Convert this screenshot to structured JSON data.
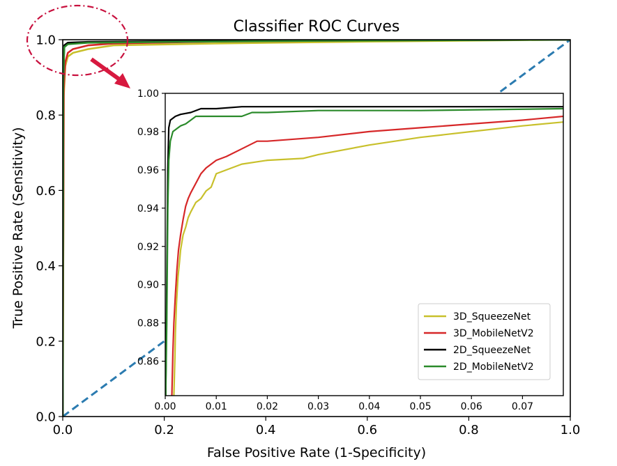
{
  "chart_data": [
    {
      "id": "main",
      "type": "line",
      "title": "Classifier ROC Curves",
      "xlabel": "False Positive Rate (1-Specificity)",
      "ylabel": "True Positive Rate (Sensitivity)",
      "xlim": [
        0,
        1
      ],
      "ylim": [
        0,
        1
      ],
      "xticks": [
        "0.0",
        "0.2",
        "0.4",
        "0.6",
        "0.8",
        "1.0"
      ],
      "yticks": [
        "0.0",
        "0.2",
        "0.4",
        "0.6",
        "0.8",
        "1.0"
      ],
      "grid": false,
      "reference_line": {
        "x": [
          0,
          1
        ],
        "y": [
          0,
          1
        ],
        "color": "#2b7bb0",
        "style": "dashed"
      },
      "series": [
        {
          "name": "3D_SqueezeNet",
          "color": "#c8c02b",
          "x": [
            0,
            0.002,
            0.005,
            0.01,
            0.02,
            0.05,
            0.1,
            0.3,
            0.6,
            1.0
          ],
          "y": [
            0,
            0.85,
            0.93,
            0.955,
            0.965,
            0.975,
            0.985,
            0.99,
            0.995,
            1.0
          ]
        },
        {
          "name": "3D_MobileNetV2",
          "color": "#d62728",
          "x": [
            0,
            0.002,
            0.005,
            0.01,
            0.02,
            0.05,
            0.1,
            0.3,
            0.6,
            1.0
          ],
          "y": [
            0,
            0.87,
            0.94,
            0.965,
            0.975,
            0.985,
            0.99,
            0.995,
            0.998,
            1.0
          ]
        },
        {
          "name": "2D_SqueezeNet",
          "color": "#000000",
          "x": [
            0,
            0.001,
            0.003,
            0.01,
            0.05,
            0.2,
            0.5,
            1.0
          ],
          "y": [
            0,
            0.9,
            0.985,
            0.992,
            0.994,
            0.996,
            0.998,
            1.0
          ]
        },
        {
          "name": "2D_MobileNetV2",
          "color": "#2a8a2a",
          "x": [
            0,
            0.001,
            0.003,
            0.01,
            0.05,
            0.2,
            0.5,
            1.0
          ],
          "y": [
            0,
            0.88,
            0.98,
            0.988,
            0.992,
            0.994,
            0.997,
            1.0
          ]
        }
      ]
    },
    {
      "id": "inset",
      "type": "line",
      "xlim": [
        0,
        0.078
      ],
      "ylim": [
        0.842,
        1.0
      ],
      "xticks": [
        "0.00",
        "0.01",
        "0.02",
        "0.03",
        "0.04",
        "0.05",
        "0.06",
        "0.07"
      ],
      "yticks": [
        "0.86",
        "0.88",
        "0.90",
        "0.92",
        "0.94",
        "0.96",
        "0.98",
        "1.00"
      ],
      "legend": "lower-right",
      "grid": false,
      "series": [
        {
          "name": "3D_SqueezeNet",
          "color": "#c8c02b",
          "x": [
            0.0017,
            0.0019,
            0.002,
            0.0022,
            0.0025,
            0.0028,
            0.003,
            0.0035,
            0.004,
            0.0045,
            0.005,
            0.006,
            0.007,
            0.008,
            0.009,
            0.01,
            0.012,
            0.015,
            0.02,
            0.027,
            0.03,
            0.04,
            0.05,
            0.06,
            0.07,
            0.078
          ],
          "y": [
            0.842,
            0.862,
            0.875,
            0.89,
            0.904,
            0.912,
            0.918,
            0.926,
            0.93,
            0.935,
            0.938,
            0.943,
            0.945,
            0.949,
            0.951,
            0.958,
            0.96,
            0.963,
            0.965,
            0.966,
            0.968,
            0.973,
            0.977,
            0.98,
            0.983,
            0.985
          ]
        },
        {
          "name": "3D_MobileNetV2",
          "color": "#d62728",
          "x": [
            0.0013,
            0.0015,
            0.0017,
            0.002,
            0.0023,
            0.0026,
            0.003,
            0.0035,
            0.004,
            0.0045,
            0.005,
            0.006,
            0.007,
            0.008,
            0.009,
            0.01,
            0.012,
            0.015,
            0.018,
            0.02,
            0.03,
            0.04,
            0.05,
            0.06,
            0.07,
            0.078
          ],
          "y": [
            0.842,
            0.865,
            0.88,
            0.895,
            0.908,
            0.918,
            0.926,
            0.934,
            0.941,
            0.945,
            0.948,
            0.953,
            0.958,
            0.961,
            0.963,
            0.965,
            0.967,
            0.971,
            0.975,
            0.975,
            0.977,
            0.98,
            0.982,
            0.984,
            0.986,
            0.988
          ]
        },
        {
          "name": "2D_SqueezeNet",
          "color": "#000000",
          "x": [
            0.0001,
            0.0003,
            0.0005,
            0.0007,
            0.001,
            0.002,
            0.003,
            0.005,
            0.007,
            0.01,
            0.015,
            0.03,
            0.05,
            0.078
          ],
          "y": [
            0.842,
            0.9,
            0.96,
            0.982,
            0.986,
            0.988,
            0.989,
            0.99,
            0.992,
            0.992,
            0.993,
            0.993,
            0.993,
            0.993
          ]
        },
        {
          "name": "2D_MobileNetV2",
          "color": "#2a8a2a",
          "x": [
            0.0001,
            0.0003,
            0.0005,
            0.0007,
            0.001,
            0.0015,
            0.002,
            0.003,
            0.004,
            0.005,
            0.006,
            0.008,
            0.01,
            0.013,
            0.015,
            0.017,
            0.02,
            0.03,
            0.05,
            0.078
          ],
          "y": [
            0.842,
            0.88,
            0.94,
            0.965,
            0.975,
            0.98,
            0.981,
            0.983,
            0.984,
            0.986,
            0.988,
            0.988,
            0.988,
            0.988,
            0.988,
            0.99,
            0.99,
            0.991,
            0.991,
            0.992
          ]
        }
      ]
    }
  ],
  "annotation": {
    "circle_color": "#c8103e",
    "arrow_color": "#d7193f"
  }
}
